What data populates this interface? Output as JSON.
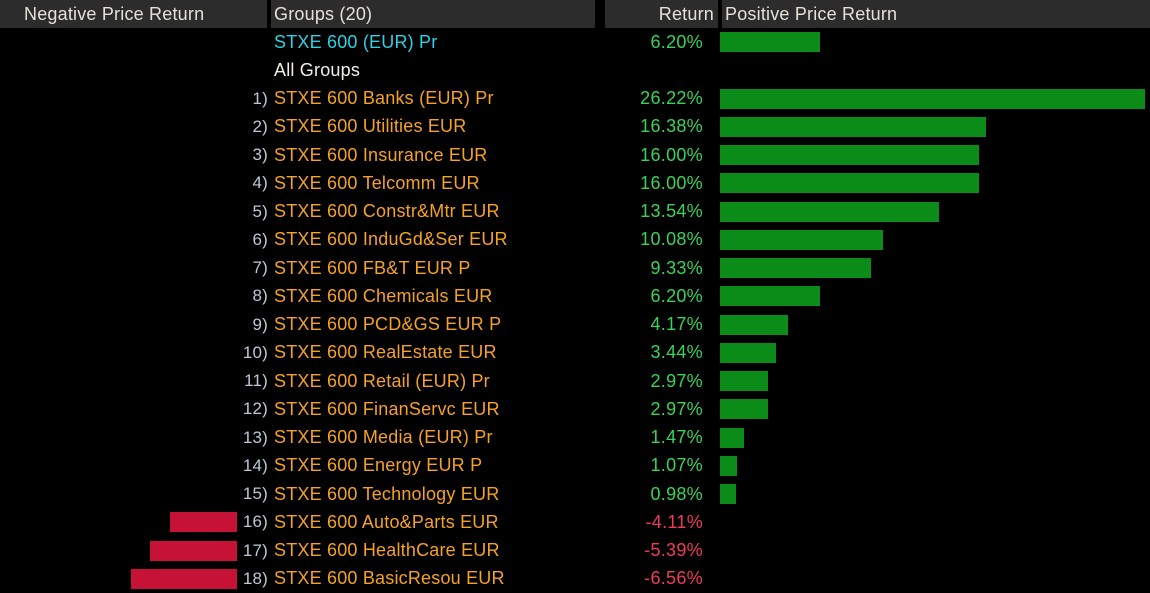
{
  "header": {
    "negative_label": "Negative Price Return",
    "groups_label": "Groups (20)",
    "return_label": "Return",
    "positive_label": "Positive Price Return"
  },
  "colors": {
    "background": "#000000",
    "header_bg": "#2c2c2c",
    "header_text": "#e4e1da",
    "positive_bar": "#0b8b18",
    "negative_bar": "#c51236",
    "positive_text": "#38d45a",
    "negative_text": "#ef3a5c",
    "index_label": "#29d2e4",
    "neutral_label": "#f3efe8",
    "group_label": "#f6a222",
    "prefix_text": "#bdc8d6"
  },
  "chart_data": {
    "type": "bar",
    "orientation": "horizontal",
    "title": "Groups (20)",
    "value_suffix": "%",
    "axis_max_abs_pct": 26.22,
    "legend": [
      "Negative Price Return",
      "Positive Price Return"
    ],
    "rows": [
      {
        "prefix": "",
        "label": "STXE 600 (EUR) Pr",
        "label_color": "index",
        "value": 6.2,
        "return_text": "6.20%"
      },
      {
        "prefix": "",
        "label": "All Groups",
        "label_color": "neutral",
        "value": null,
        "return_text": ""
      },
      {
        "prefix": "1)",
        "label": "STXE 600 Banks (EUR) Pr",
        "label_color": "group",
        "value": 26.22,
        "return_text": "26.22%"
      },
      {
        "prefix": "2)",
        "label": "STXE 600 Utilities EUR",
        "label_color": "group",
        "value": 16.38,
        "return_text": "16.38%"
      },
      {
        "prefix": "3)",
        "label": "STXE 600 Insurance EUR",
        "label_color": "group",
        "value": 16.0,
        "return_text": "16.00%"
      },
      {
        "prefix": "4)",
        "label": "STXE 600 Telcomm EUR",
        "label_color": "group",
        "value": 16.0,
        "return_text": "16.00%"
      },
      {
        "prefix": "5)",
        "label": "STXE 600 Constr&Mtr EUR",
        "label_color": "group",
        "value": 13.54,
        "return_text": "13.54%"
      },
      {
        "prefix": "6)",
        "label": "STXE 600 InduGd&Ser EUR",
        "label_color": "group",
        "value": 10.08,
        "return_text": "10.08%"
      },
      {
        "prefix": "7)",
        "label": "STXE 600 FB&T EUR P",
        "label_color": "group",
        "value": 9.33,
        "return_text": "9.33%"
      },
      {
        "prefix": "8)",
        "label": "STXE 600 Chemicals EUR",
        "label_color": "group",
        "value": 6.2,
        "return_text": "6.20%"
      },
      {
        "prefix": "9)",
        "label": "STXE 600 PCD&GS EUR P",
        "label_color": "group",
        "value": 4.17,
        "return_text": "4.17%"
      },
      {
        "prefix": "10)",
        "label": "STXE 600 RealEstate EUR",
        "label_color": "group",
        "value": 3.44,
        "return_text": "3.44%"
      },
      {
        "prefix": "11)",
        "label": "STXE 600 Retail (EUR) Pr",
        "label_color": "group",
        "value": 2.97,
        "return_text": "2.97%"
      },
      {
        "prefix": "12)",
        "label": "STXE 600 FinanServc EUR",
        "label_color": "group",
        "value": 2.97,
        "return_text": "2.97%"
      },
      {
        "prefix": "13)",
        "label": "STXE 600 Media (EUR) Pr",
        "label_color": "group",
        "value": 1.47,
        "return_text": "1.47%"
      },
      {
        "prefix": "14)",
        "label": "STXE 600 Energy EUR P",
        "label_color": "group",
        "value": 1.07,
        "return_text": "1.07%"
      },
      {
        "prefix": "15)",
        "label": "STXE 600 Technology EUR",
        "label_color": "group",
        "value": 0.98,
        "return_text": "0.98%"
      },
      {
        "prefix": "16)",
        "label": "STXE 600 Auto&Parts EUR",
        "label_color": "group",
        "value": -4.11,
        "return_text": "-4.11%"
      },
      {
        "prefix": "17)",
        "label": "STXE 600 HealthCare EUR",
        "label_color": "group",
        "value": -5.39,
        "return_text": "-5.39%"
      },
      {
        "prefix": "18)",
        "label": "STXE 600 BasicResou EUR",
        "label_color": "group",
        "value": -6.56,
        "return_text": "-6.56%"
      }
    ]
  }
}
